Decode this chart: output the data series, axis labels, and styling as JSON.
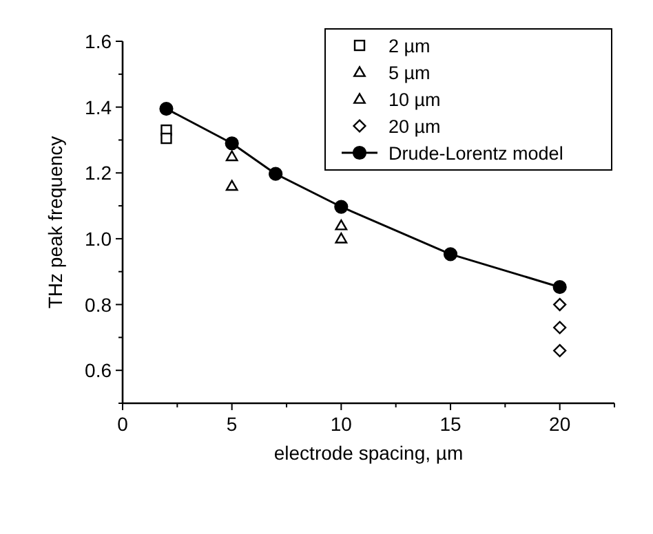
{
  "chart_data": {
    "type": "scatter",
    "xlabel": "electrode spacing, µm",
    "ylabel": "THz peak frequency",
    "xlim": [
      0,
      22.5
    ],
    "ylim": [
      0.5,
      1.6
    ],
    "xticks": [
      0,
      {
        "value": 2.5,
        "label": null
      },
      5,
      {
        "value": 7.5,
        "label": null
      },
      10,
      {
        "value": 12.5,
        "label": null
      },
      15,
      {
        "value": 17.5,
        "label": null
      },
      20,
      {
        "value": 22.5,
        "label": null
      }
    ],
    "yticks": [
      {
        "value": 0.5,
        "label": null
      },
      0.6,
      {
        "value": 0.7,
        "label": null
      },
      0.8,
      {
        "value": 0.9,
        "label": null
      },
      {
        "value": 1,
        "label": "1.0"
      },
      {
        "value": 1.1,
        "label": null
      },
      1.2,
      {
        "value": 1.3,
        "label": null
      },
      1.4,
      {
        "value": 1.5,
        "label": null
      },
      1.6
    ],
    "grid": false,
    "legend": "top right",
    "series": [
      {
        "name": "2 µm",
        "marker": "square",
        "color": "#000000",
        "x": [
          2,
          2
        ],
        "values": [
          1.33,
          1.305
        ]
      },
      {
        "name": "5 µm",
        "marker": "triangle",
        "color": "#000000",
        "x": [
          5,
          5
        ],
        "values": [
          1.25,
          1.16
        ]
      },
      {
        "name": "10 µm",
        "marker": "triangle",
        "color": "#000000",
        "x": [
          10,
          10
        ],
        "values": [
          1.04,
          1.0
        ]
      },
      {
        "name": "20 µm",
        "marker": "diamond",
        "color": "#000000",
        "x": [
          20,
          20,
          20
        ],
        "values": [
          0.8,
          0.73,
          0.66
        ]
      },
      {
        "name": "Drude-Lorentz model",
        "type": "line",
        "marker": "circle",
        "color": "#000000",
        "x": [
          2,
          5,
          7,
          10,
          15,
          20
        ],
        "values": [
          1.395,
          1.29,
          1.197,
          1.097,
          0.953,
          0.853
        ]
      }
    ]
  }
}
